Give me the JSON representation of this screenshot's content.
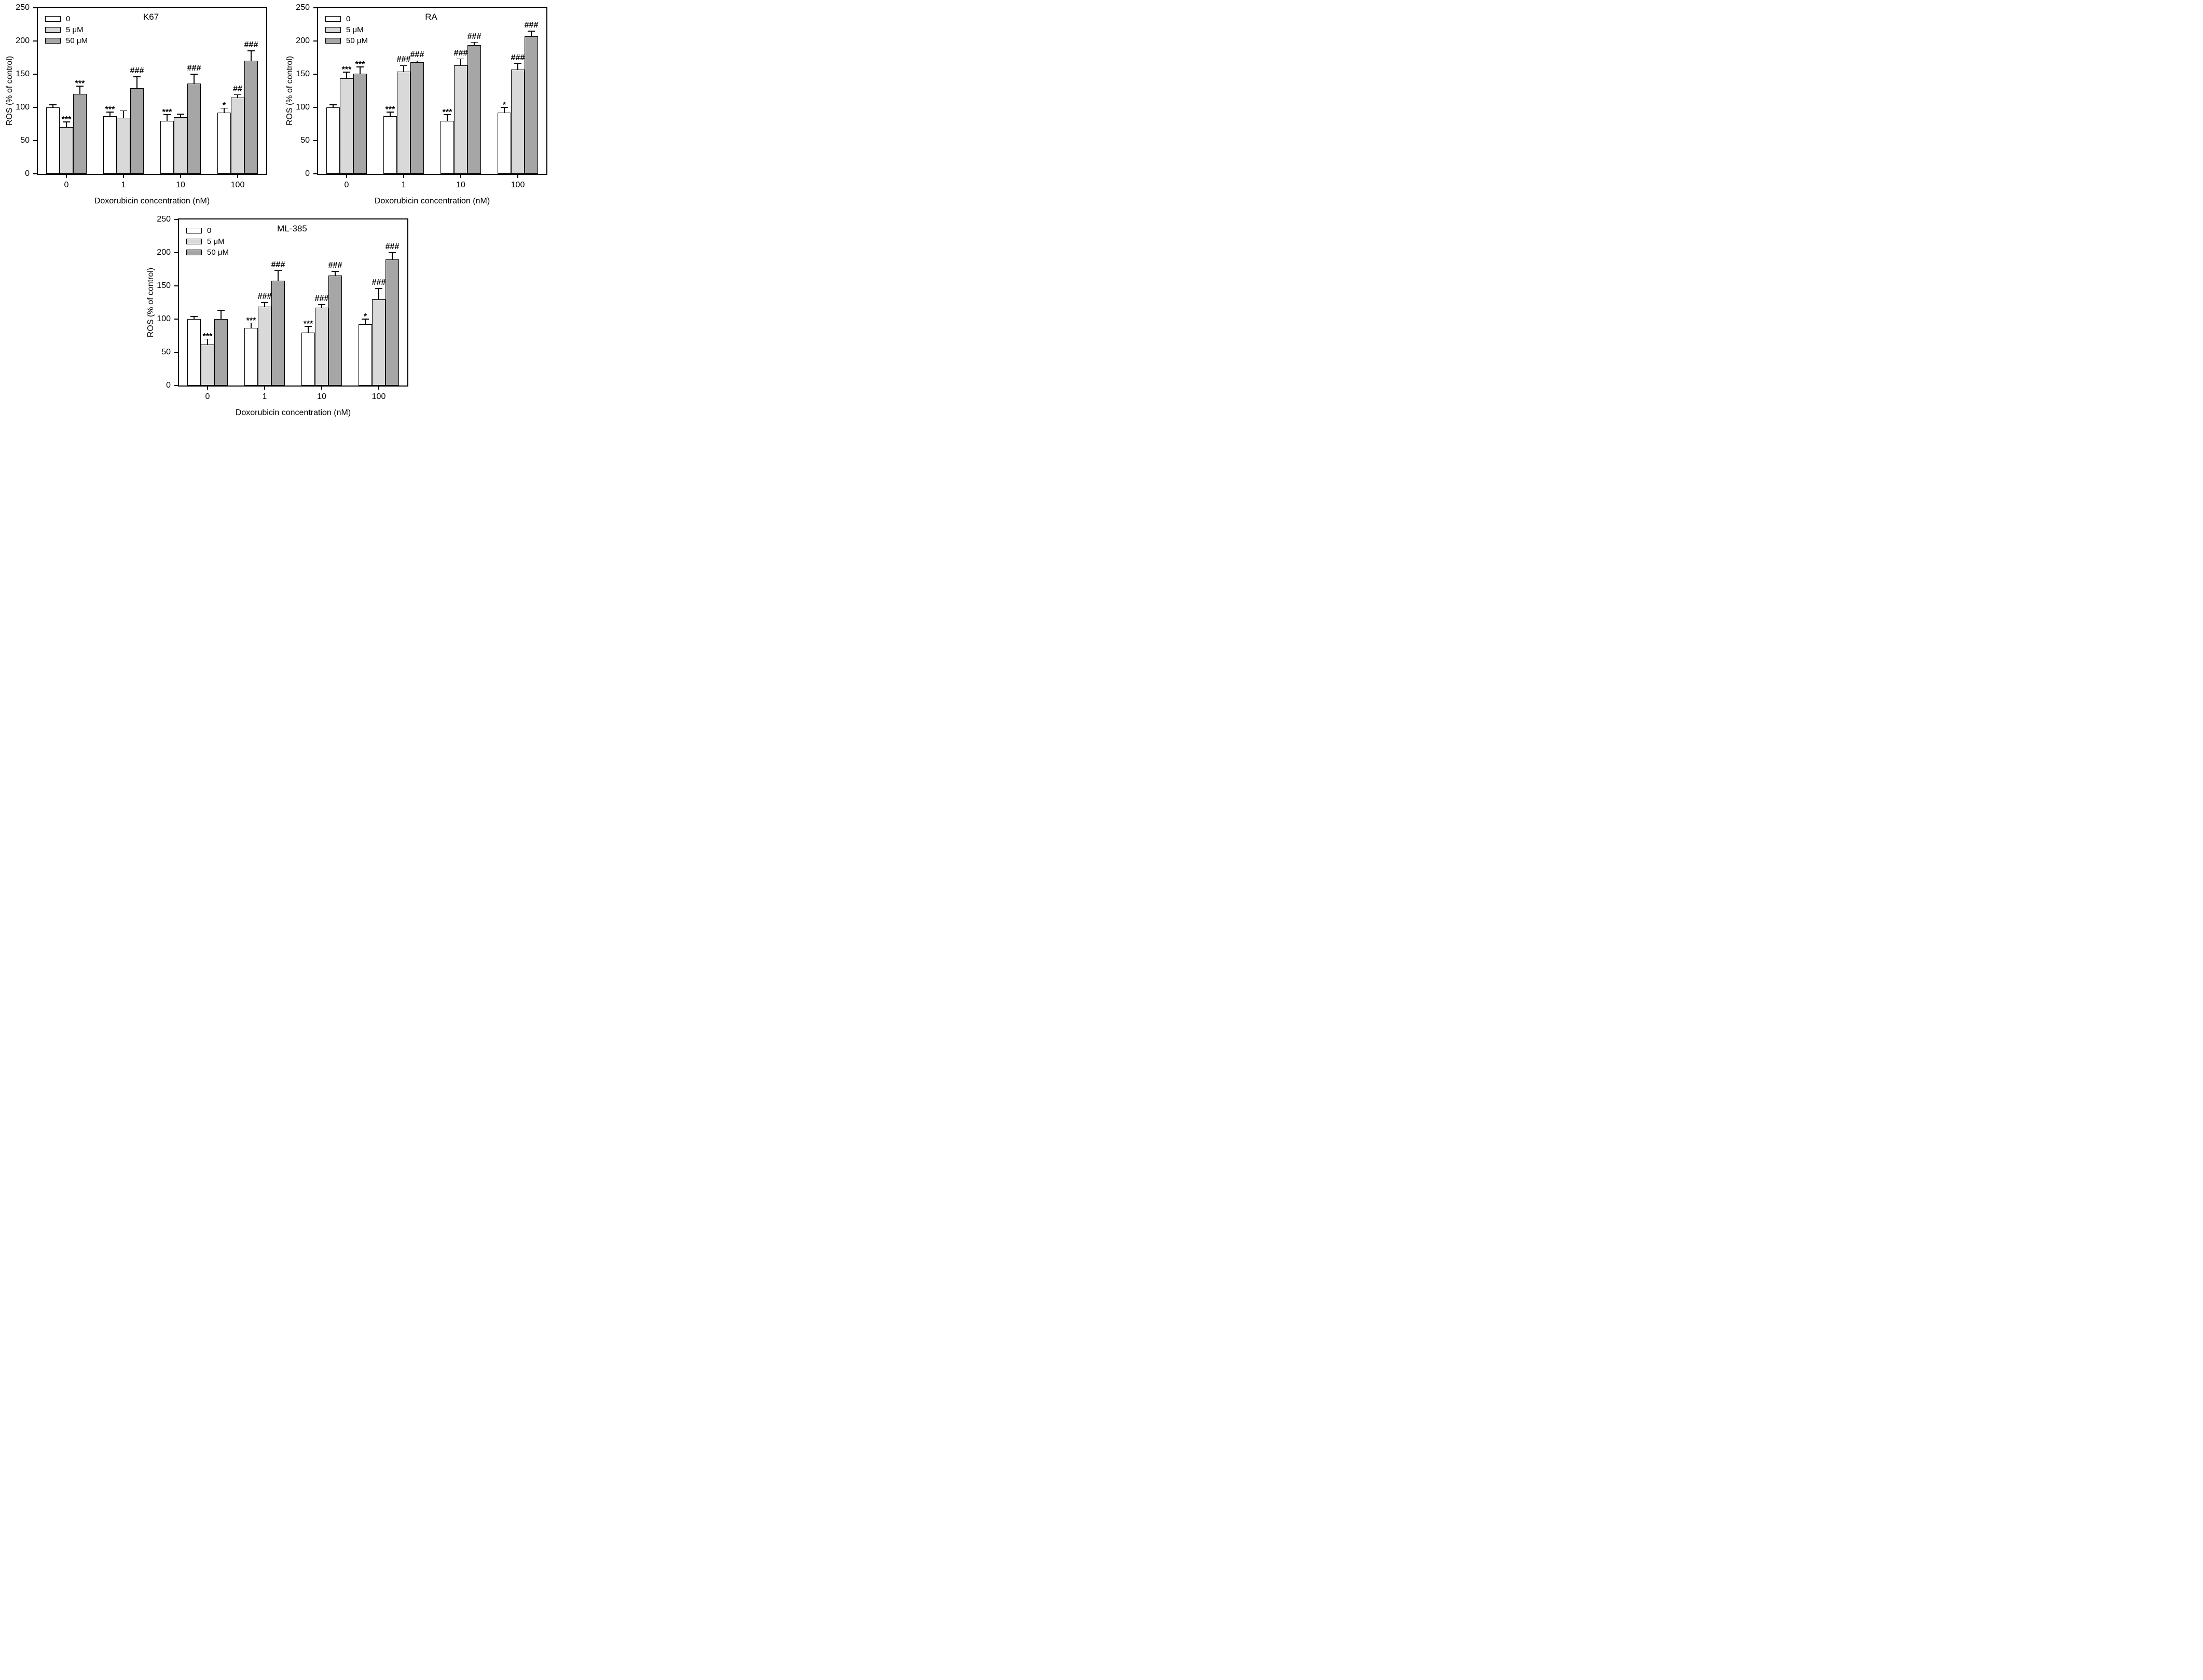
{
  "figure": {
    "background": "#ffffff",
    "bar_border_color": "#000000",
    "series_fills": [
      "#ffffff",
      "#d9d9d9",
      "#a6a6a6"
    ]
  },
  "chart_data": [
    {
      "type": "bar",
      "title": "K67",
      "xlabel": "Doxorubicin concentration (nM)",
      "ylabel": "ROS (% of control)",
      "categories": [
        "0",
        "1",
        "10",
        "100"
      ],
      "ylim": [
        0,
        250
      ],
      "yticks": [
        0,
        50,
        100,
        150,
        200,
        250
      ],
      "legend_position": "top-left",
      "grid": false,
      "series": [
        {
          "name": "0",
          "fill": "#ffffff",
          "values": [
            100,
            87,
            80,
            92
          ],
          "errors": [
            4,
            6,
            9,
            7
          ],
          "annotations": [
            "",
            "***",
            "***",
            "*"
          ]
        },
        {
          "name": "5 μM",
          "fill": "#d9d9d9",
          "values": [
            70,
            84,
            85,
            115
          ],
          "errors": [
            8,
            11,
            5,
            4
          ],
          "annotations": [
            "***",
            "",
            "",
            "##"
          ]
        },
        {
          "name": "50 μM",
          "fill": "#a6a6a6",
          "values": [
            120,
            129,
            136,
            170
          ],
          "errors": [
            12,
            17,
            14,
            15
          ],
          "annotations": [
            "***",
            "###",
            "###",
            "###"
          ]
        }
      ]
    },
    {
      "type": "bar",
      "title": "RA",
      "xlabel": "Doxorubicin concentration (nM)",
      "ylabel": "ROS (% of control)",
      "categories": [
        "0",
        "1",
        "10",
        "100"
      ],
      "ylim": [
        0,
        250
      ],
      "yticks": [
        0,
        50,
        100,
        150,
        200,
        250
      ],
      "legend_position": "top-left",
      "grid": false,
      "series": [
        {
          "name": "0",
          "fill": "#ffffff",
          "values": [
            100,
            87,
            80,
            92
          ],
          "errors": [
            4,
            6,
            9,
            8
          ],
          "annotations": [
            "",
            "***",
            "***",
            "*"
          ]
        },
        {
          "name": "5 μM",
          "fill": "#d9d9d9",
          "values": [
            144,
            154,
            163,
            157
          ],
          "errors": [
            9,
            9,
            10,
            9
          ],
          "annotations": [
            "***",
            "###",
            "###",
            "###"
          ]
        },
        {
          "name": "50 μM",
          "fill": "#a6a6a6",
          "values": [
            151,
            168,
            194,
            207
          ],
          "errors": [
            10,
            2,
            4,
            8
          ],
          "annotations": [
            "***",
            "###",
            "###",
            "###"
          ]
        }
      ]
    },
    {
      "type": "bar",
      "title": "ML-385",
      "xlabel": "Doxorubicin concentration (nM)",
      "ylabel": "ROS (% of control)",
      "categories": [
        "0",
        "1",
        "10",
        "100"
      ],
      "ylim": [
        0,
        250
      ],
      "yticks": [
        0,
        50,
        100,
        150,
        200,
        250
      ],
      "legend_position": "top-left",
      "grid": false,
      "series": [
        {
          "name": "0",
          "fill": "#ffffff",
          "values": [
            100,
            87,
            80,
            92
          ],
          "errors": [
            4,
            7,
            9,
            8
          ],
          "annotations": [
            "",
            "***",
            "***",
            "*"
          ]
        },
        {
          "name": "5 μM",
          "fill": "#d9d9d9",
          "values": [
            62,
            119,
            117,
            130
          ],
          "errors": [
            8,
            6,
            5,
            16
          ],
          "annotations": [
            "***",
            "###",
            "###",
            "###"
          ]
        },
        {
          "name": "50 μM",
          "fill": "#a6a6a6",
          "values": [
            100,
            158,
            166,
            190
          ],
          "errors": [
            13,
            15,
            6,
            10
          ],
          "annotations": [
            "",
            "###",
            "###",
            "###"
          ]
        }
      ]
    }
  ]
}
